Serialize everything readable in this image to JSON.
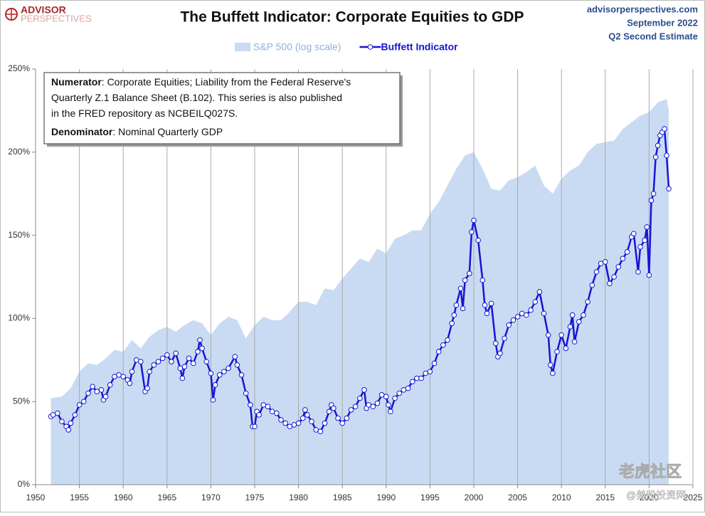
{
  "chart_data": {
    "type": "line",
    "title": "The Buffett Indicator: Corporate Equities to GDP",
    "logo": [
      "ADVISOR",
      "PERSPECTIVES"
    ],
    "source": [
      "advisorperspectives.com",
      "September 2022",
      "Q2 Second Estimate"
    ],
    "annotation": [
      {
        "bold": "Numerator",
        "text": ": Corporate Equities; Liability from the Federal Reserve's"
      },
      {
        "bold": null,
        "text": "Quarterly Z.1 Balance Sheet (B.102). This series is also published"
      },
      {
        "bold": null,
        "text": "in the FRED repository as NCBEILQ027S."
      },
      {
        "bold": "Denominator",
        "text": ": Nominal Quarterly GDP"
      }
    ],
    "watermark": [
      "老虎社区",
      "@美股投资网"
    ],
    "xlim": [
      1950,
      2025
    ],
    "xticks": [
      1950,
      1955,
      1960,
      1965,
      1970,
      1975,
      1980,
      1985,
      1990,
      1995,
      2000,
      2005,
      2010,
      2015,
      2020,
      2025
    ],
    "ylim": [
      0,
      250
    ],
    "yticks": [
      {
        "value": 0,
        "label": "0%"
      },
      {
        "value": 50,
        "label": "50%"
      },
      {
        "value": 100,
        "label": "100%"
      },
      {
        "value": 150,
        "label": "150%"
      },
      {
        "value": 200,
        "label": "200%"
      },
      {
        "value": 250,
        "label": "250%"
      }
    ],
    "grid": "x",
    "series": [
      {
        "name": "S&P 500 (log scale)",
        "kind": "area",
        "color": "#c9dbf2",
        "label_color": "#8fb1de",
        "x": [
          1951.75,
          1953,
          1954,
          1955,
          1956,
          1957,
          1958,
          1959,
          1960,
          1961,
          1962,
          1963,
          1964,
          1965,
          1966,
          1967,
          1968,
          1969,
          1970,
          1971,
          1972,
          1973,
          1974,
          1975,
          1976,
          1977,
          1978,
          1979,
          1980,
          1981,
          1982,
          1983,
          1984,
          1985,
          1986,
          1987,
          1988,
          1989,
          1990,
          1991,
          1992,
          1993,
          1994,
          1995,
          1996,
          1997,
          1998,
          1999,
          2000,
          2001,
          2002,
          2003,
          2004,
          2005,
          2006,
          2007,
          2008,
          2009,
          2010,
          2011,
          2012,
          2013,
          2014,
          2015,
          2016,
          2017,
          2018,
          2019,
          2020,
          2021,
          2022,
          2022.25
        ],
        "values": [
          52,
          53,
          58,
          68,
          73,
          72,
          76,
          81,
          80,
          87,
          82,
          89,
          93,
          95,
          92,
          96,
          99,
          97,
          90,
          97,
          101,
          99,
          88,
          96,
          101,
          99,
          99,
          104,
          110,
          110,
          108,
          118,
          117,
          124,
          130,
          136,
          134,
          142,
          139,
          148,
          150,
          153,
          153,
          163,
          170,
          180,
          190,
          198,
          200,
          190,
          178,
          177,
          183,
          185,
          188,
          192,
          180,
          175,
          184,
          189,
          192,
          200,
          205,
          206,
          207,
          214,
          218,
          222,
          224,
          230,
          232,
          225
        ]
      },
      {
        "name": "Buffett Indicator",
        "kind": "line",
        "color": "#1515d6",
        "label_color": "#1515d6",
        "x": [
          1951.75,
          1952,
          1952.5,
          1953,
          1953.5,
          1953.75,
          1954,
          1954.5,
          1955,
          1955.5,
          1956,
          1956.5,
          1957,
          1957.5,
          1957.75,
          1958,
          1958.5,
          1959,
          1959.5,
          1960,
          1960.5,
          1960.75,
          1961,
          1961.5,
          1962,
          1962.5,
          1962.75,
          1963,
          1963.5,
          1964,
          1964.5,
          1965,
          1965.5,
          1966,
          1966.5,
          1966.75,
          1967,
          1967.5,
          1968,
          1968.5,
          1968.75,
          1969,
          1969.5,
          1970,
          1970.25,
          1970.5,
          1971,
          1971.5,
          1972,
          1972.75,
          1973,
          1973.5,
          1974,
          1974.5,
          1974.75,
          1975,
          1975.25,
          1975.5,
          1976,
          1976.5,
          1977,
          1977.5,
          1978,
          1978.5,
          1979,
          1979.5,
          1980,
          1980.5,
          1980.75,
          1981,
          1981.5,
          1982,
          1982.5,
          1983,
          1983.5,
          1983.75,
          1984,
          1984.5,
          1985,
          1985.5,
          1986,
          1986.5,
          1987,
          1987.5,
          1987.75,
          1988,
          1988.5,
          1989,
          1989.5,
          1990,
          1990.25,
          1990.5,
          1991,
          1991.5,
          1992,
          1992.5,
          1993,
          1993.5,
          1994,
          1994.5,
          1995,
          1995.5,
          1996,
          1996.5,
          1997,
          1997.5,
          1997.75,
          1998,
          1998.5,
          1998.75,
          1999,
          1999.5,
          1999.75,
          2000,
          2000.5,
          2001,
          2001.25,
          2001.5,
          2002,
          2002.5,
          2002.75,
          2003,
          2003.5,
          2004,
          2004.5,
          2005,
          2005.5,
          2006,
          2006.5,
          2007,
          2007.5,
          2008,
          2008.5,
          2008.75,
          2009,
          2009.5,
          2010,
          2010.5,
          2011,
          2011.25,
          2011.5,
          2012,
          2012.5,
          2013,
          2013.5,
          2014,
          2014.5,
          2015,
          2015.5,
          2016,
          2016.5,
          2017,
          2017.5,
          2018,
          2018.25,
          2018.75,
          2019,
          2019.5,
          2019.75,
          2020,
          2020.25,
          2020.5,
          2020.75,
          2021,
          2021.25,
          2021.5,
          2021.75,
          2022,
          2022.25
        ],
        "values": [
          41,
          42,
          43,
          38,
          35,
          33,
          37,
          42,
          48,
          50,
          55,
          59,
          56,
          57,
          51,
          53,
          60,
          65,
          66,
          65,
          63,
          61,
          68,
          75,
          74,
          56,
          58,
          68,
          72,
          74,
          76,
          78,
          74,
          79,
          70,
          64,
          71,
          76,
          73,
          80,
          87,
          82,
          74,
          67,
          51,
          60,
          66,
          68,
          70,
          77,
          72,
          66,
          55,
          48,
          35,
          35,
          44,
          42,
          48,
          47,
          44,
          43,
          39,
          37,
          35,
          36,
          37,
          40,
          45,
          42,
          38,
          33,
          32,
          37,
          44,
          48,
          46,
          40,
          37,
          40,
          45,
          47,
          52,
          57,
          46,
          48,
          47,
          49,
          54,
          53,
          48,
          44,
          52,
          55,
          57,
          58,
          62,
          64,
          64,
          67,
          68,
          73,
          80,
          84,
          87,
          97,
          102,
          108,
          118,
          106,
          123,
          127,
          152,
          159,
          147,
          123,
          108,
          103,
          109,
          85,
          77,
          79,
          88,
          96,
          99,
          101,
          103,
          102,
          105,
          110,
          116,
          103,
          90,
          72,
          67,
          80,
          90,
          82,
          95,
          102,
          86,
          98,
          102,
          110,
          120,
          128,
          133,
          134,
          121,
          125,
          131,
          136,
          140,
          149,
          151,
          128,
          143,
          147,
          155,
          126,
          171,
          175,
          197,
          204,
          210,
          212,
          214,
          198,
          178
        ]
      }
    ]
  }
}
